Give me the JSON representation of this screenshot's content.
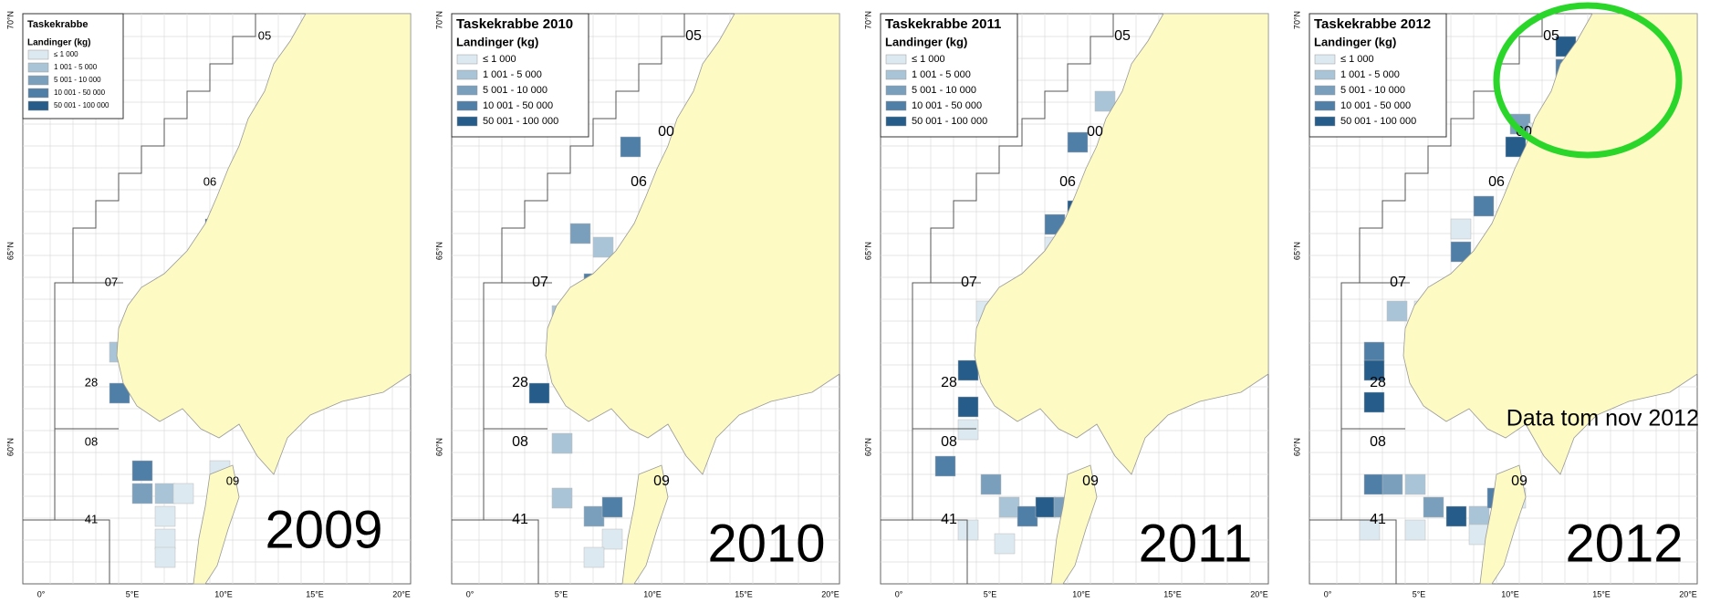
{
  "panels": [
    {
      "title": "Taskekrabbe",
      "legend_title": "Landinger (kg)",
      "legend": [
        "≤ 1 000",
        "1 001 - 5 000",
        "5 001 - 10 000",
        "10 001 - 50 000",
        "50 001 - 100 000"
      ],
      "zones": [
        "05",
        "06",
        "07",
        "28",
        "08",
        "09",
        "41"
      ],
      "year": "2009",
      "lon_labels": [
        "0°",
        "5°E",
        "10°E",
        "15°E",
        "20°E"
      ],
      "lat_labels": [
        "70°N",
        "65°N",
        "60°N"
      ]
    },
    {
      "title": "Taskekrabbe 2010",
      "legend_title": "Landinger (kg)",
      "legend": [
        "≤ 1 000",
        "1 001 - 5 000",
        "5 001 - 10 000",
        "10 001 - 50 000",
        "50 001 - 100 000"
      ],
      "zones": [
        "05",
        "00",
        "06",
        "07",
        "28",
        "08",
        "09",
        "41"
      ],
      "year": "2010",
      "lon_labels": [
        "0°",
        "5°E",
        "10°E",
        "15°E",
        "20°E"
      ],
      "lat_labels": [
        "70°N",
        "65°N",
        "60°N"
      ]
    },
    {
      "title": "Taskekrabbe 2011",
      "legend_title": "Landinger (kg)",
      "legend": [
        "≤ 1 000",
        "1 001 - 5 000",
        "5 001 - 10 000",
        "10 001 - 50 000",
        "50 001 - 100 000"
      ],
      "zones": [
        "05",
        "00",
        "06",
        "07",
        "28",
        "08",
        "09",
        "41"
      ],
      "year": "2011",
      "lon_labels": [
        "0°",
        "5°E",
        "10°E",
        "15°E",
        "20°E"
      ],
      "lat_labels": [
        "70°N",
        "65°N",
        "60°N"
      ]
    },
    {
      "title": "Taskekrabbe 2012",
      "legend_title": "Landinger (kg)",
      "legend": [
        "≤ 1 000",
        "1 001 - 5 000",
        "5 001 - 10 000",
        "10 001 - 50 000",
        "50 001 - 100 000"
      ],
      "zones": [
        "05",
        "00",
        "06",
        "07",
        "28",
        "08",
        "09",
        "41"
      ],
      "year": "2012",
      "lon_labels": [
        "0°",
        "5°E",
        "10°E",
        "15°E",
        "20°E"
      ],
      "lat_labels": [
        "70°N",
        "65°N",
        "60°N"
      ],
      "annotation": "Data tom nov 2012"
    }
  ]
}
